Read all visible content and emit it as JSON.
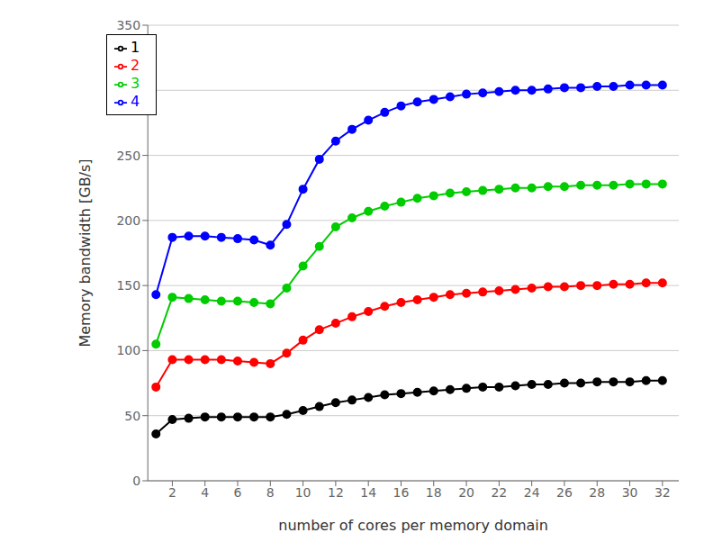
{
  "chart_data": {
    "type": "line",
    "xlabel": "number of cores per memory domain",
    "ylabel": "Memory bandwidth [GB/s]",
    "x": [
      1,
      2,
      3,
      4,
      5,
      6,
      7,
      8,
      9,
      10,
      11,
      12,
      13,
      14,
      15,
      16,
      17,
      18,
      19,
      20,
      21,
      22,
      23,
      24,
      25,
      26,
      27,
      28,
      29,
      30,
      31,
      32
    ],
    "series": [
      {
        "name": "1",
        "color": "#000000",
        "values": [
          36,
          47,
          48,
          49,
          49,
          49,
          49,
          49,
          51,
          54,
          57,
          60,
          62,
          64,
          66,
          67,
          68,
          69,
          70,
          71,
          72,
          72,
          73,
          74,
          74,
          75,
          75,
          76,
          76,
          76,
          77,
          77
        ]
      },
      {
        "name": "2",
        "color": "#ff0000",
        "values": [
          72,
          93,
          93,
          93,
          93,
          92,
          91,
          90,
          98,
          108,
          116,
          121,
          126,
          130,
          134,
          137,
          139,
          141,
          143,
          144,
          145,
          146,
          147,
          148,
          149,
          149,
          150,
          150,
          151,
          151,
          152,
          152
        ]
      },
      {
        "name": "3",
        "color": "#00cc00",
        "values": [
          105,
          141,
          140,
          139,
          138,
          138,
          137,
          136,
          148,
          165,
          180,
          195,
          202,
          207,
          211,
          214,
          217,
          219,
          221,
          222,
          223,
          224,
          225,
          225,
          226,
          226,
          227,
          227,
          227,
          228,
          228,
          228
        ]
      },
      {
        "name": "4",
        "color": "#0000ff",
        "values": [
          143,
          187,
          188,
          188,
          187,
          186,
          185,
          181,
          197,
          224,
          247,
          261,
          270,
          277,
          283,
          288,
          291,
          293,
          295,
          297,
          298,
          299,
          300,
          300,
          301,
          302,
          302,
          303,
          303,
          304,
          304,
          304
        ]
      }
    ],
    "xlim": [
      0.5,
      33.0
    ],
    "ylim": [
      0,
      350
    ],
    "xticks": [
      2,
      4,
      6,
      8,
      10,
      12,
      14,
      16,
      18,
      20,
      22,
      24,
      26,
      28,
      30,
      32
    ],
    "yticks": [
      0,
      50,
      100,
      150,
      200,
      250,
      300,
      350
    ],
    "grid": true,
    "legend": "upper left",
    "marker": "circle"
  }
}
